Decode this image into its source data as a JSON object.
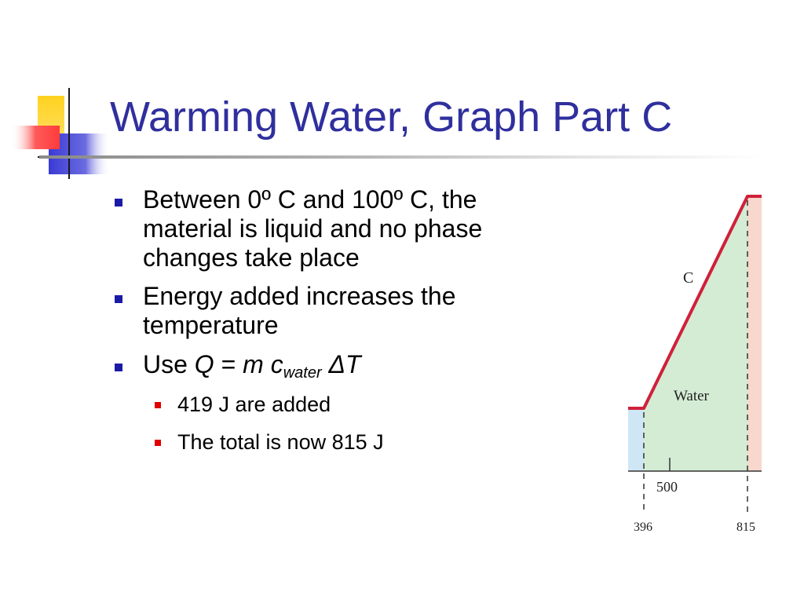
{
  "slide": {
    "title": "Warming Water, Graph Part C"
  },
  "bullets": [
    {
      "text": "Between 0º C and 100º C, the material is liquid and no phase changes take place"
    },
    {
      "text": "Energy added increases the temperature"
    },
    {
      "text_prefix": "Use ",
      "formula": {
        "Q": "Q",
        "eq": " = ",
        "m": "m",
        "c": "c",
        "sub": "water",
        "dT": "ΔT"
      }
    }
  ],
  "subbullets": [
    {
      "text": "419 J are added"
    },
    {
      "text": "The total is now 815 J"
    }
  ],
  "chart_data": {
    "type": "line",
    "segment_label": "C",
    "region_label": "Water",
    "x_tick_labels": [
      "396",
      "500",
      "815"
    ],
    "x": [
      396,
      815
    ],
    "y_relative": [
      0,
      1
    ],
    "colors": {
      "line": "#d0203a",
      "water_fill": "#d4ecd4",
      "ice_fill": "#cfe6f5",
      "steam_fill": "#f8d8cc"
    }
  }
}
